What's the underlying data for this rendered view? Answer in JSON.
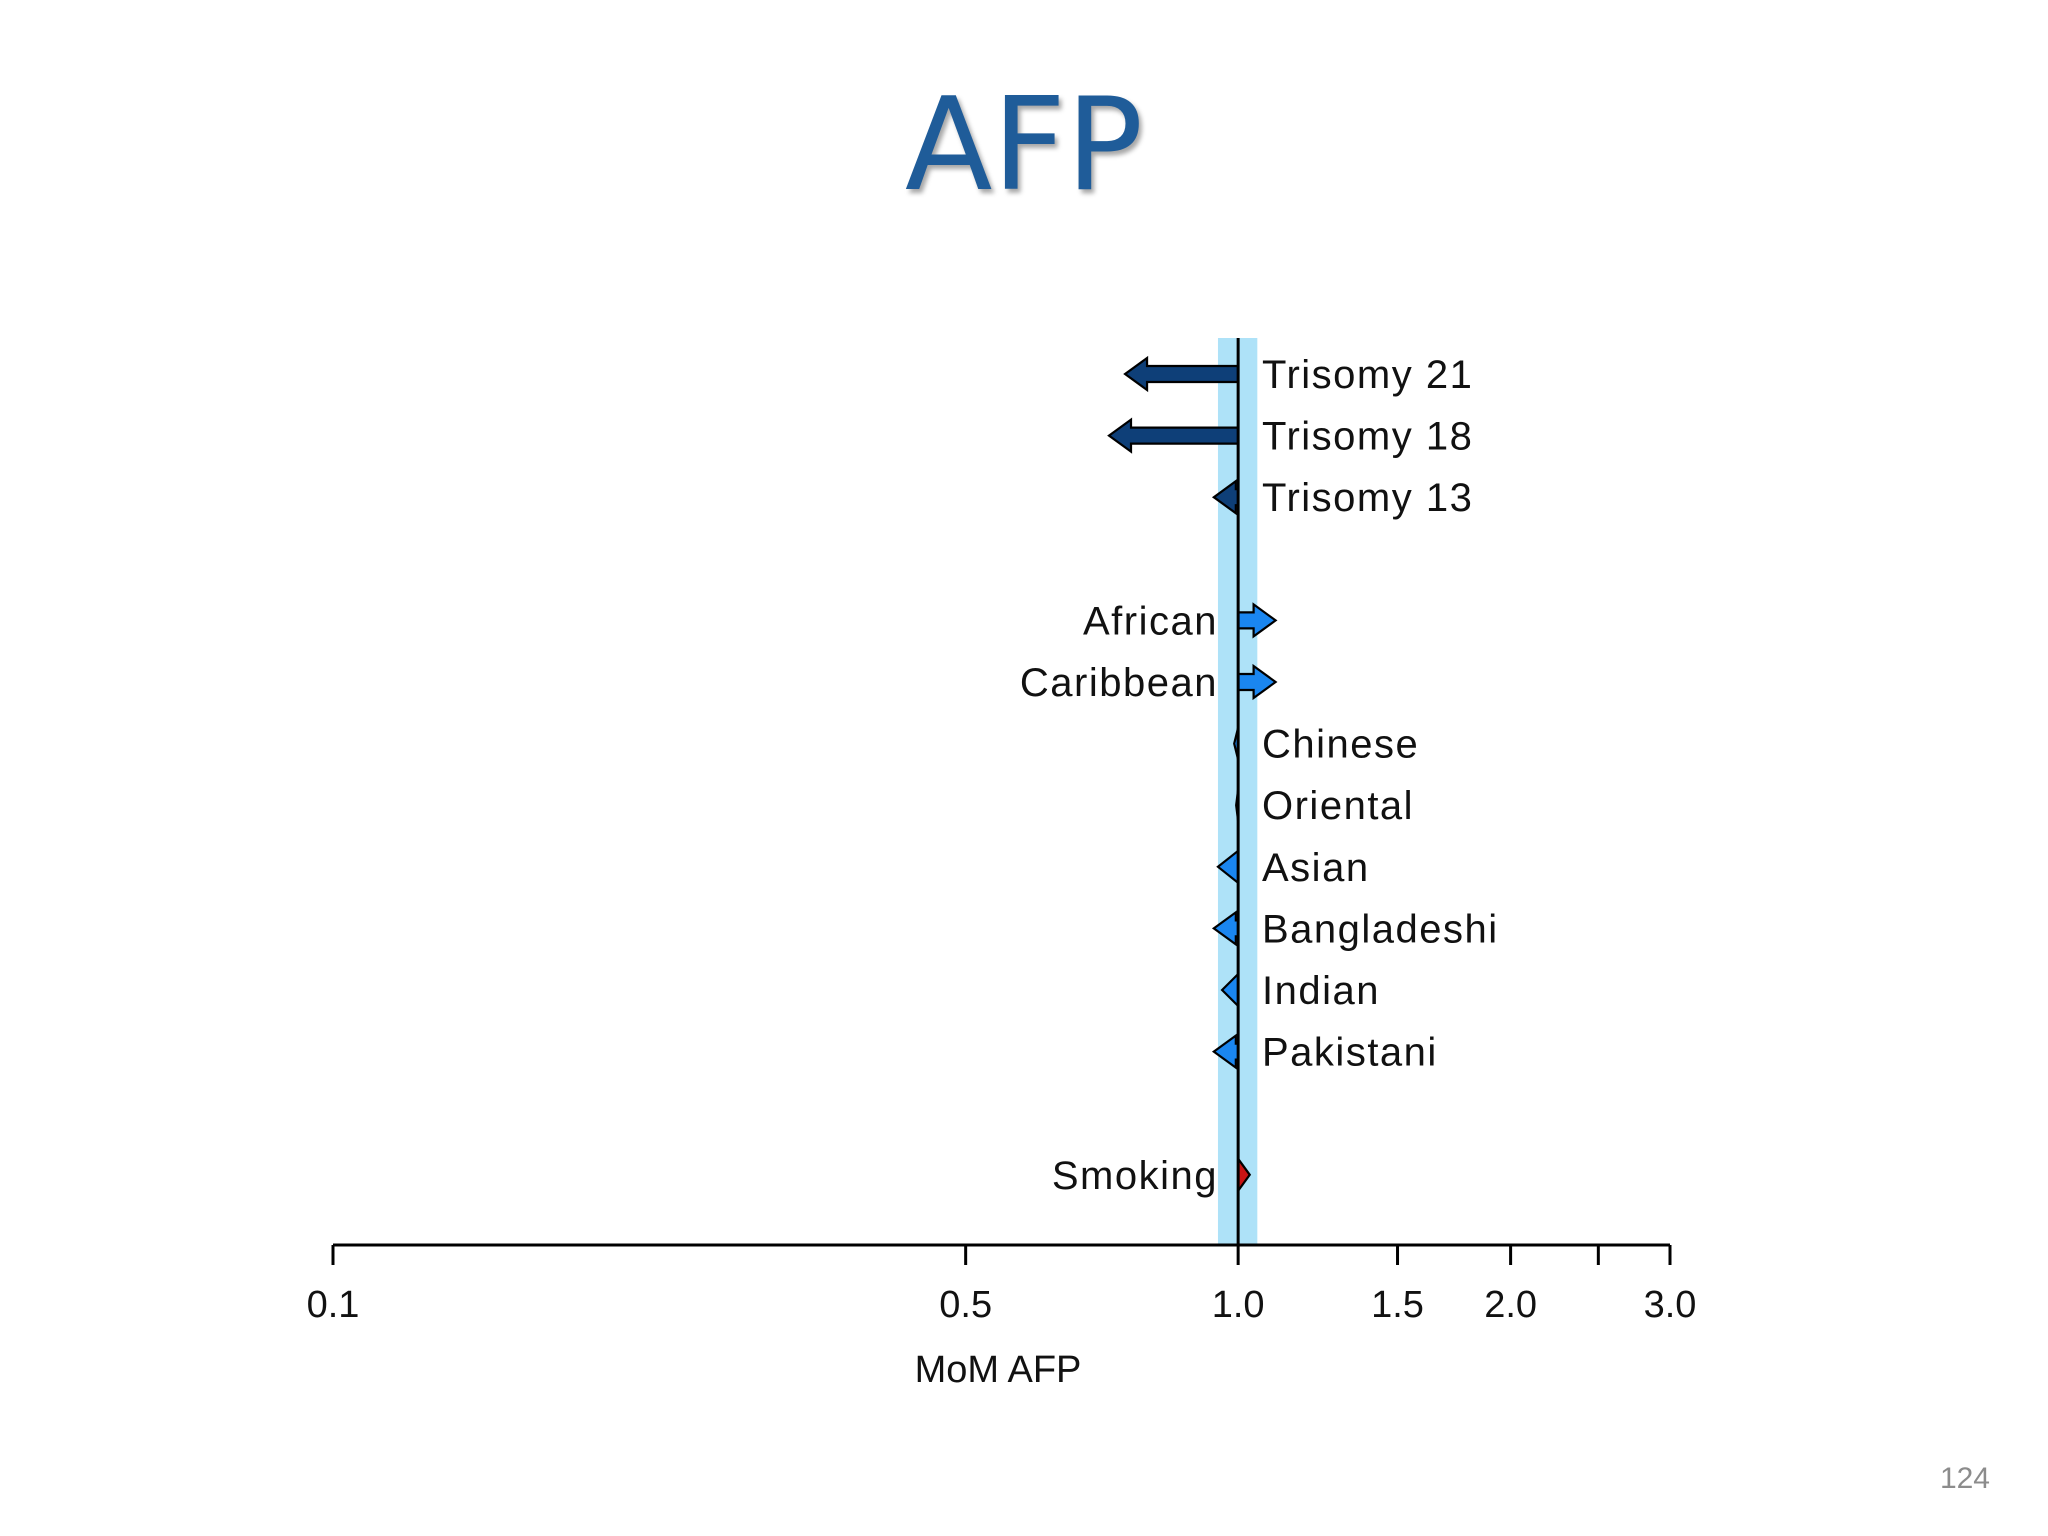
{
  "slide": {
    "title": "AFP",
    "page_number": "124"
  },
  "colors": {
    "chromosomal": "#0e3f78",
    "ethnic": "#1a86f0",
    "smoking": "#c81414",
    "reference_band": "#aee2f8",
    "outline": "#000000"
  },
  "chart_data": {
    "type": "forest",
    "xlabel": "MoM AFP",
    "x_scale": "log",
    "xlim": [
      0.1,
      3.0
    ],
    "xticks": [
      {
        "value": 0.1,
        "label": "0.1"
      },
      {
        "value": 0.5,
        "label": "0.5"
      },
      {
        "value": 1.0,
        "label": "1.0"
      },
      {
        "value": 1.5,
        "label": "1.5"
      },
      {
        "value": 2.0,
        "label": "2.0"
      },
      {
        "value": 2.5,
        "label": ""
      },
      {
        "value": 3.0,
        "label": "3.0"
      }
    ],
    "reference_line": 1.0,
    "reference_band": [
      0.95,
      1.05
    ],
    "groups": [
      {
        "name": "chromosomal",
        "items": [
          {
            "label": "Trisomy 21",
            "value": 0.75
          },
          {
            "label": "Trisomy 18",
            "value": 0.72
          },
          {
            "label": "Trisomy 13",
            "value": 0.94
          }
        ]
      },
      {
        "name": "ethnic",
        "items": [
          {
            "label": "African",
            "value": 1.1
          },
          {
            "label": "Caribbean",
            "value": 1.1
          },
          {
            "label": "Chinese",
            "value": 0.99
          },
          {
            "label": "Oriental",
            "value": 0.995
          },
          {
            "label": "Asian",
            "value": 0.95
          },
          {
            "label": "Bangladeshi",
            "value": 0.94
          },
          {
            "label": "Indian",
            "value": 0.96
          },
          {
            "label": "Pakistani",
            "value": 0.94
          }
        ]
      },
      {
        "name": "smoking",
        "items": [
          {
            "label": "Smoking",
            "value": 1.03
          }
        ]
      }
    ]
  }
}
